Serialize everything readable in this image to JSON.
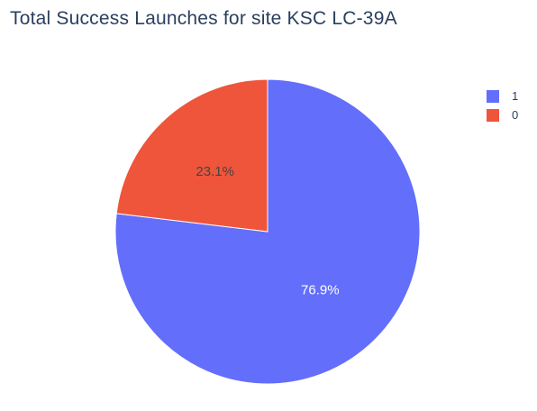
{
  "chart_data": {
    "type": "pie",
    "title": "Total Success Launches for site KSC LC-39A",
    "slices": [
      {
        "label": "1",
        "value": 76.9,
        "text": "76.9%",
        "color": "#636efa",
        "text_color": "#ffffff"
      },
      {
        "label": "0",
        "value": 23.1,
        "text": "23.1%",
        "color": "#ef553b",
        "text_color": "#444444"
      }
    ],
    "legend": {
      "placement": "top-right",
      "entries": [
        "1",
        "0"
      ]
    }
  }
}
